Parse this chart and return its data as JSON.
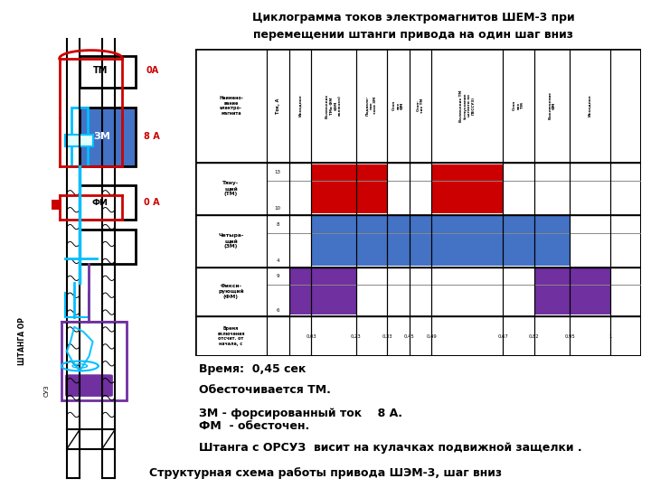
{
  "title_line1": "Циклограмма токов электромагнитов ШЕМ-3 при",
  "title_line2": "перемещении штанги привода на один шаг вниз",
  "bottom_title": "Структурная схема работы привода ШЭМ-3, шаг вниз",
  "text_time": "Время:  0,45 сек",
  "text_line2": "Обесточивается ТМ.",
  "text_line3": "ЗМ - форсированный ток    8 А.",
  "text_line4": "ФМ  - обесточен.",
  "text_line5": "Штанга с ОРСУЗ  висит на кулачках подвижной защелки .",
  "color_red": "#CC0000",
  "color_blue": "#4472C4",
  "color_purple": "#7030A0",
  "color_bg": "#FFFFFF",
  "color_cyan": "#00BFFF",
  "color_black": "#000000"
}
